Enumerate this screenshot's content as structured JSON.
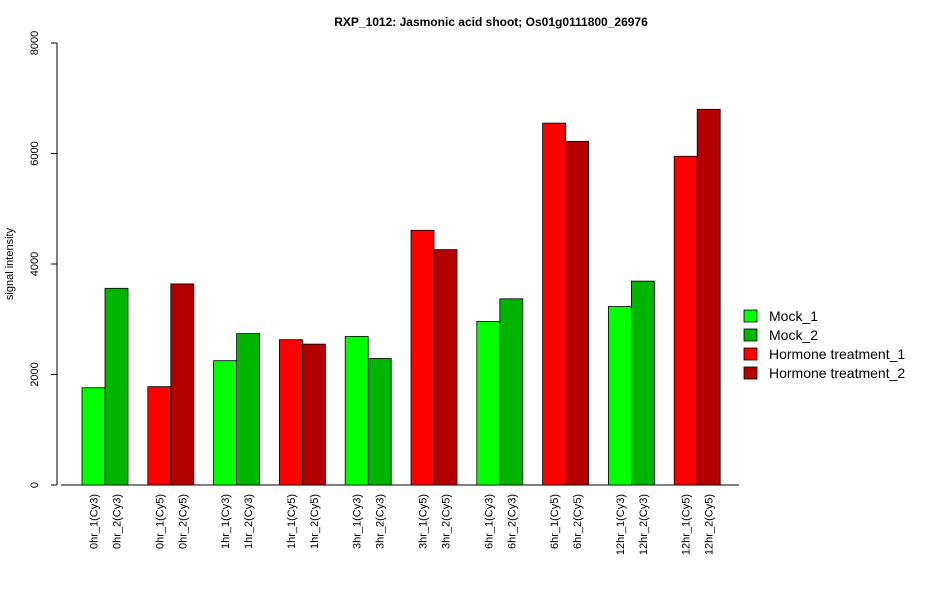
{
  "chart_data": {
    "type": "bar",
    "title": "RXP_1012: Jasmonic acid shoot; Os01g0111800_26976",
    "xlabel": "",
    "ylabel": "signal intensity",
    "ylim": [
      0,
      8000
    ],
    "yticks": [
      0,
      2000,
      4000,
      6000,
      8000
    ],
    "grid": false,
    "legend_position": "right",
    "legend": [
      {
        "name": "Mock_1",
        "color": "#00ff00"
      },
      {
        "name": "Mock_2",
        "color": "#00b400"
      },
      {
        "name": "Hormone treatment_1",
        "color": "#ff0000"
      },
      {
        "name": "Hormone treatment_2",
        "color": "#b40000"
      }
    ],
    "groups": [
      {
        "bars": [
          {
            "label": "0hr_1(Cy3)",
            "value": 1760,
            "series": 0
          },
          {
            "label": "0hr_2(Cy3)",
            "value": 3560,
            "series": 1
          }
        ]
      },
      {
        "bars": [
          {
            "label": "0hr_1(Cy5)",
            "value": 1780,
            "series": 2
          },
          {
            "label": "0hr_2(Cy5)",
            "value": 3640,
            "series": 3
          }
        ]
      },
      {
        "bars": [
          {
            "label": "1hr_1(Cy3)",
            "value": 2250,
            "series": 0
          },
          {
            "label": "1hr_2(Cy3)",
            "value": 2740,
            "series": 1
          }
        ]
      },
      {
        "bars": [
          {
            "label": "1hr_1(Cy5)",
            "value": 2630,
            "series": 2
          },
          {
            "label": "1hr_2(Cy5)",
            "value": 2550,
            "series": 3
          }
        ]
      },
      {
        "bars": [
          {
            "label": "3hr_1(Cy3)",
            "value": 2690,
            "series": 0
          },
          {
            "label": "3hr_2(Cy3)",
            "value": 2290,
            "series": 1
          }
        ]
      },
      {
        "bars": [
          {
            "label": "3hr_1(Cy5)",
            "value": 4610,
            "series": 2
          },
          {
            "label": "3hr_2(Cy5)",
            "value": 4260,
            "series": 3
          }
        ]
      },
      {
        "bars": [
          {
            "label": "6hr_1(Cy3)",
            "value": 2960,
            "series": 0
          },
          {
            "label": "6hr_2(Cy3)",
            "value": 3370,
            "series": 1
          }
        ]
      },
      {
        "bars": [
          {
            "label": "6hr_1(Cy5)",
            "value": 6550,
            "series": 2
          },
          {
            "label": "6hr_2(Cy5)",
            "value": 6220,
            "series": 3
          }
        ]
      },
      {
        "bars": [
          {
            "label": "12hr_1(Cy3)",
            "value": 3230,
            "series": 0
          },
          {
            "label": "12hr_2(Cy3)",
            "value": 3690,
            "series": 1
          }
        ]
      },
      {
        "bars": [
          {
            "label": "12hr_1(Cy5)",
            "value": 5950,
            "series": 2
          },
          {
            "label": "12hr_2(Cy5)",
            "value": 6800,
            "series": 3
          }
        ]
      }
    ]
  }
}
